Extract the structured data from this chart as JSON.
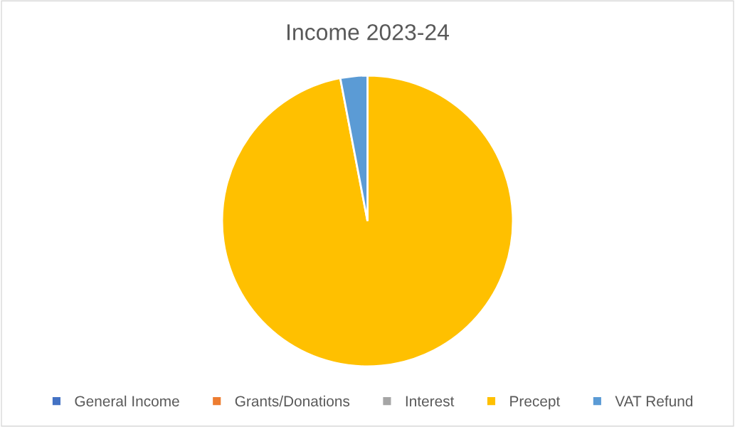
{
  "chart_data": {
    "type": "pie",
    "title": "Income 2023-24",
    "categories": [
      "General Income",
      "Grants/Donations",
      "Interest",
      "Precept",
      "VAT Refund"
    ],
    "values": [
      0,
      0,
      0,
      97,
      3
    ],
    "colors": [
      "#4472c4",
      "#ed7d31",
      "#a5a5a5",
      "#ffc000",
      "#5b9bd5"
    ],
    "legend": "bottom"
  }
}
